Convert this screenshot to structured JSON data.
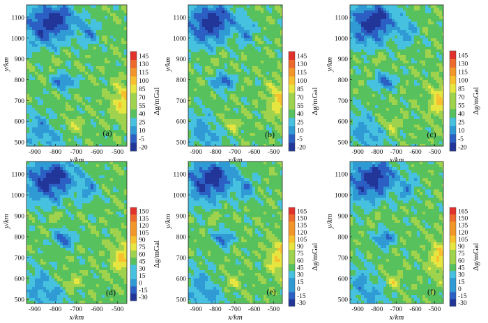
{
  "colors": {
    "colormap": [
      "#22369a",
      "#2c5fc4",
      "#2f9ad4",
      "#46c2e0",
      "#57c15e",
      "#9fd34e",
      "#e7e640",
      "#f7c02e",
      "#f3962a",
      "#ee6a2c",
      "#e0312b"
    ]
  },
  "chart_data": [
    {
      "type": "heatmap",
      "panel": "(a)",
      "xlabel": "x/km",
      "ylabel": "y/km",
      "xticks": [
        "-900",
        "-800",
        "-700",
        "-600",
        "-500"
      ],
      "yticks": [
        "500",
        "600",
        "700",
        "800",
        "900",
        "1000",
        "1100"
      ],
      "xlim": [
        -940,
        -455
      ],
      "ylim": [
        480,
        1160
      ],
      "colorbar": {
        "label": "Δg/mGal",
        "ticks": [
          "145",
          "130",
          "115",
          "100",
          "85",
          "70",
          "55",
          "40",
          "25",
          "10",
          "-5",
          "-20"
        ],
        "range": [
          -20,
          145
        ]
      }
    },
    {
      "type": "heatmap",
      "panel": "(b)",
      "xlabel": "x/km",
      "ylabel": "y/km",
      "xticks": [
        "-900",
        "-800",
        "-700",
        "-600",
        "-500"
      ],
      "yticks": [
        "500",
        "600",
        "700",
        "800",
        "900",
        "1000",
        "1100"
      ],
      "xlim": [
        -940,
        -455
      ],
      "ylim": [
        480,
        1160
      ],
      "colorbar": {
        "label": "Δg/mGal",
        "ticks": [
          "145",
          "130",
          "115",
          "100",
          "85",
          "70",
          "55",
          "40",
          "25",
          "10",
          "-5",
          "-20"
        ],
        "range": [
          -20,
          145
        ]
      }
    },
    {
      "type": "heatmap",
      "panel": "(c)",
      "xlabel": "x/km",
      "ylabel": "y/km",
      "xticks": [
        "-900",
        "-800",
        "-700",
        "-600",
        "-500"
      ],
      "yticks": [
        "500",
        "600",
        "700",
        "800",
        "900",
        "1000",
        "1100"
      ],
      "xlim": [
        -940,
        -455
      ],
      "ylim": [
        480,
        1160
      ],
      "colorbar": {
        "label": "Δg/mGal",
        "ticks": [
          "145",
          "130",
          "115",
          "100",
          "85",
          "70",
          "55",
          "40",
          "25",
          "10",
          "-5",
          "-20"
        ],
        "range": [
          -20,
          145
        ]
      }
    },
    {
      "type": "heatmap",
      "panel": "(d)",
      "xlabel": "x/km",
      "ylabel": "y/km",
      "xticks": [
        "-900",
        "-800",
        "-700",
        "-600",
        "-500"
      ],
      "yticks": [
        "500",
        "600",
        "700",
        "800",
        "900",
        "1000",
        "1100"
      ],
      "xlim": [
        -940,
        -455
      ],
      "ylim": [
        480,
        1160
      ],
      "colorbar": {
        "label": "Δg/mGal",
        "ticks": [
          "150",
          "135",
          "120",
          "105",
          "90",
          "75",
          "60",
          "45",
          "30",
          "15",
          "0",
          "-15",
          "-30"
        ],
        "range": [
          -30,
          150
        ]
      }
    },
    {
      "type": "heatmap",
      "panel": "(e)",
      "xlabel": "x/km",
      "ylabel": "y/km",
      "xticks": [
        "-900",
        "-800",
        "-700",
        "-600",
        "-500"
      ],
      "yticks": [
        "500",
        "600",
        "700",
        "800",
        "900",
        "1000",
        "1100"
      ],
      "xlim": [
        -940,
        -455
      ],
      "ylim": [
        480,
        1160
      ],
      "colorbar": {
        "label": "Δg/mGal",
        "ticks": [
          "165",
          "150",
          "135",
          "120",
          "105",
          "90",
          "75",
          "60",
          "45",
          "30",
          "15",
          "0",
          "-15",
          "-30"
        ],
        "range": [
          -30,
          165
        ]
      }
    },
    {
      "type": "heatmap",
      "panel": "(f)",
      "xlabel": "x/km",
      "ylabel": "y/km",
      "xticks": [
        "-900",
        "-800",
        "-700",
        "-600",
        "-500"
      ],
      "yticks": [
        "500",
        "600",
        "700",
        "800",
        "900",
        "1000",
        "1100"
      ],
      "xlim": [
        -940,
        -455
      ],
      "ylim": [
        480,
        1160
      ],
      "colorbar": {
        "label": "Δg/mGal",
        "ticks": [
          "165",
          "150",
          "135",
          "120",
          "105",
          "90",
          "75",
          "60",
          "45",
          "30",
          "15",
          "0",
          "-15",
          "-30"
        ],
        "range": [
          -30,
          165
        ]
      }
    }
  ]
}
